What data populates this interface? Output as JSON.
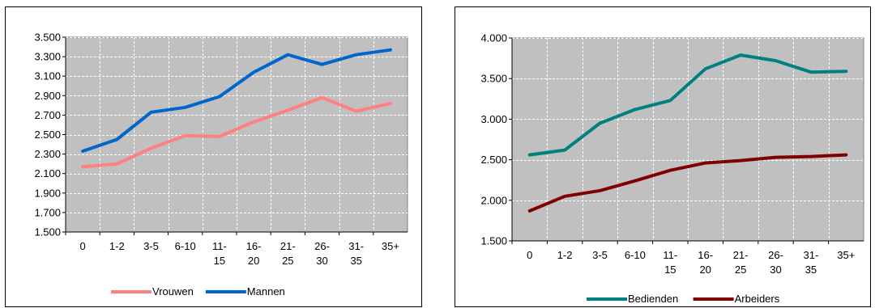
{
  "chart_data": [
    {
      "type": "line",
      "categories": [
        "0",
        "1-2",
        "3-5",
        "6-10",
        "11-15",
        "16-20",
        "21-25",
        "26-30",
        "31-35",
        "35+"
      ],
      "category_labels": [
        [
          "0"
        ],
        [
          "1-2"
        ],
        [
          "3-5"
        ],
        [
          "6-10"
        ],
        [
          "11-",
          "15"
        ],
        [
          "16-",
          "20"
        ],
        [
          "21-",
          "25"
        ],
        [
          "26-",
          "30"
        ],
        [
          "31-",
          "35"
        ],
        [
          "35+"
        ]
      ],
      "ylim": [
        1500,
        3500
      ],
      "yticks": [
        1500,
        1700,
        1900,
        2100,
        2300,
        2500,
        2700,
        2900,
        3100,
        3300,
        3500
      ],
      "ytick_labels": [
        "1.500",
        "1.700",
        "1.900",
        "2.100",
        "2.300",
        "2.500",
        "2.700",
        "2.900",
        "3.100",
        "3.300",
        "3.500"
      ],
      "grid": true,
      "legend_position": "bottom",
      "plot_background": "#c0c0c0",
      "series": [
        {
          "name": "Vrouwen",
          "color": "#ff8080",
          "values": [
            2170,
            2200,
            2360,
            2490,
            2480,
            2630,
            2750,
            2880,
            2740,
            2820
          ]
        },
        {
          "name": "Mannen",
          "color": "#0066cc",
          "values": [
            2330,
            2450,
            2730,
            2780,
            2890,
            3140,
            3320,
            3220,
            3320,
            3370
          ]
        }
      ]
    },
    {
      "type": "line",
      "categories": [
        "0",
        "1-2",
        "3-5",
        "6-10",
        "11-15",
        "16-20",
        "21-25",
        "26-30",
        "31-35",
        "35+"
      ],
      "category_labels": [
        [
          "0"
        ],
        [
          "1-2"
        ],
        [
          "3-5"
        ],
        [
          "6-10"
        ],
        [
          "11-",
          "15"
        ],
        [
          "16-",
          "20"
        ],
        [
          "21-",
          "25"
        ],
        [
          "26-",
          "30"
        ],
        [
          "31-",
          "35"
        ],
        [
          "35+"
        ]
      ],
      "ylim": [
        1500,
        4000
      ],
      "yticks": [
        1500,
        2000,
        2500,
        3000,
        3500,
        4000
      ],
      "ytick_labels": [
        "1.500",
        "2.000",
        "2.500",
        "3.000",
        "3.500",
        "4.000"
      ],
      "grid": true,
      "legend_position": "bottom",
      "plot_background": "#c0c0c0",
      "series": [
        {
          "name": "Bedienden",
          "color": "#008080",
          "values": [
            2560,
            2620,
            2950,
            3120,
            3230,
            3620,
            3790,
            3720,
            3580,
            3590
          ]
        },
        {
          "name": "Arbeiders",
          "color": "#800000",
          "values": [
            1870,
            2050,
            2120,
            2240,
            2370,
            2460,
            2490,
            2530,
            2540,
            2560
          ]
        }
      ]
    }
  ]
}
